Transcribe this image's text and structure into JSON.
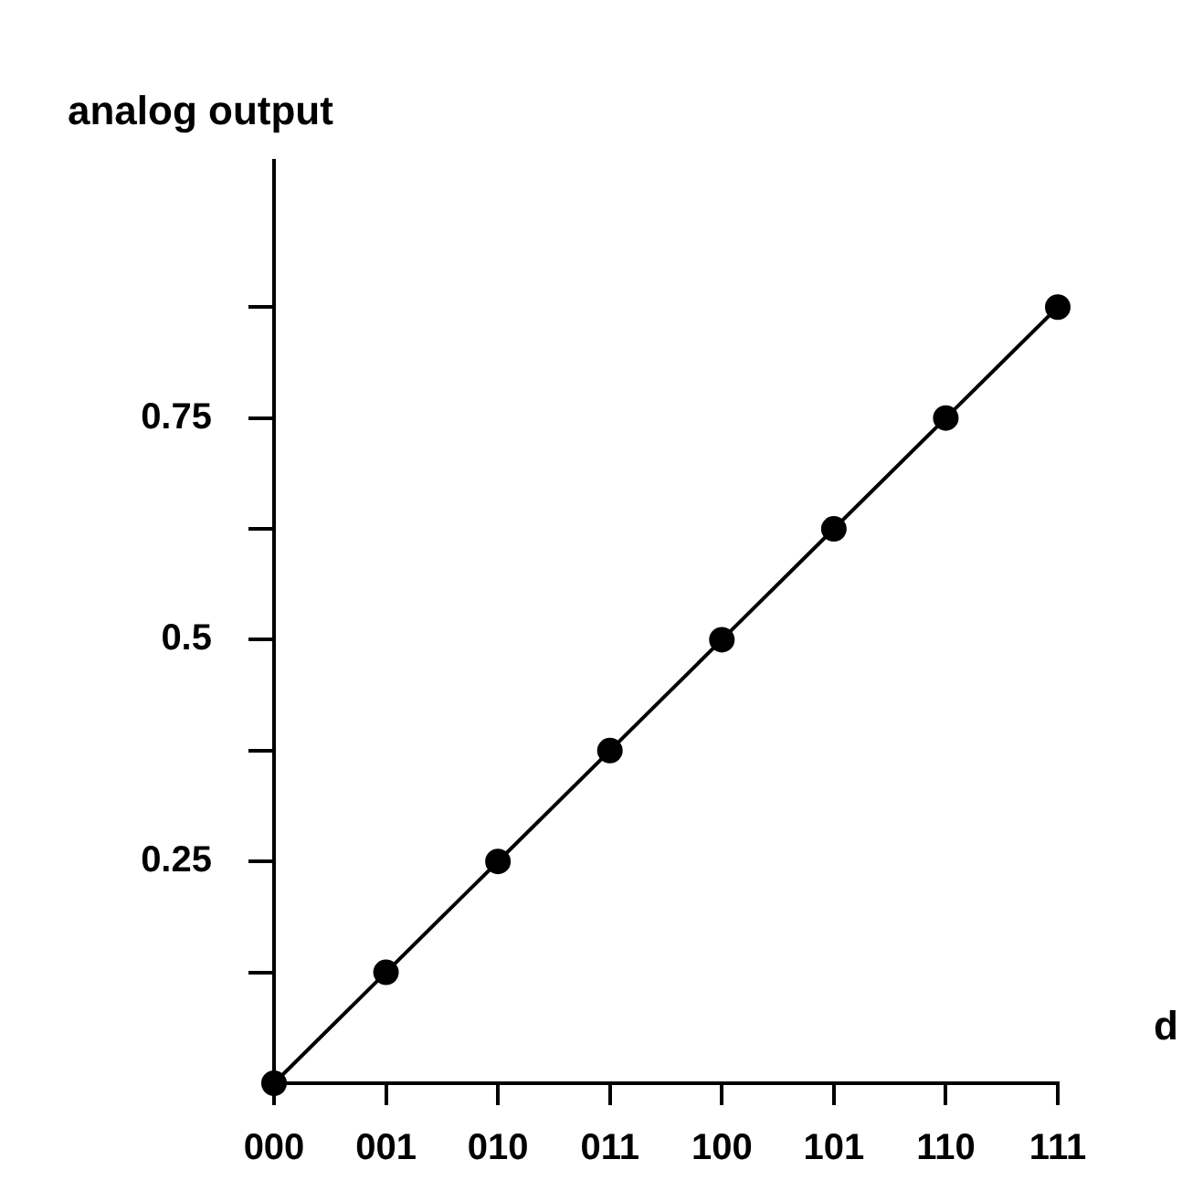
{
  "chart_data": {
    "type": "line",
    "ylabel": "analog output",
    "xlabel": "d",
    "categories": [
      "000",
      "001",
      "010",
      "011",
      "100",
      "101",
      "110",
      "111"
    ],
    "values": [
      0,
      0.125,
      0.25,
      0.375,
      0.5,
      0.625,
      0.75,
      0.875
    ],
    "color": "#000000",
    "marker": "circle",
    "line_style": "solid",
    "grid": false,
    "legend": false,
    "ylim": [
      0,
      1.04
    ],
    "yticks": [
      {
        "value": 0.125,
        "label": null
      },
      0.25,
      {
        "value": 0.375,
        "label": null
      },
      0.5,
      {
        "value": 0.625,
        "label": null
      },
      0.75,
      {
        "value": 0.875,
        "label": null
      }
    ]
  }
}
